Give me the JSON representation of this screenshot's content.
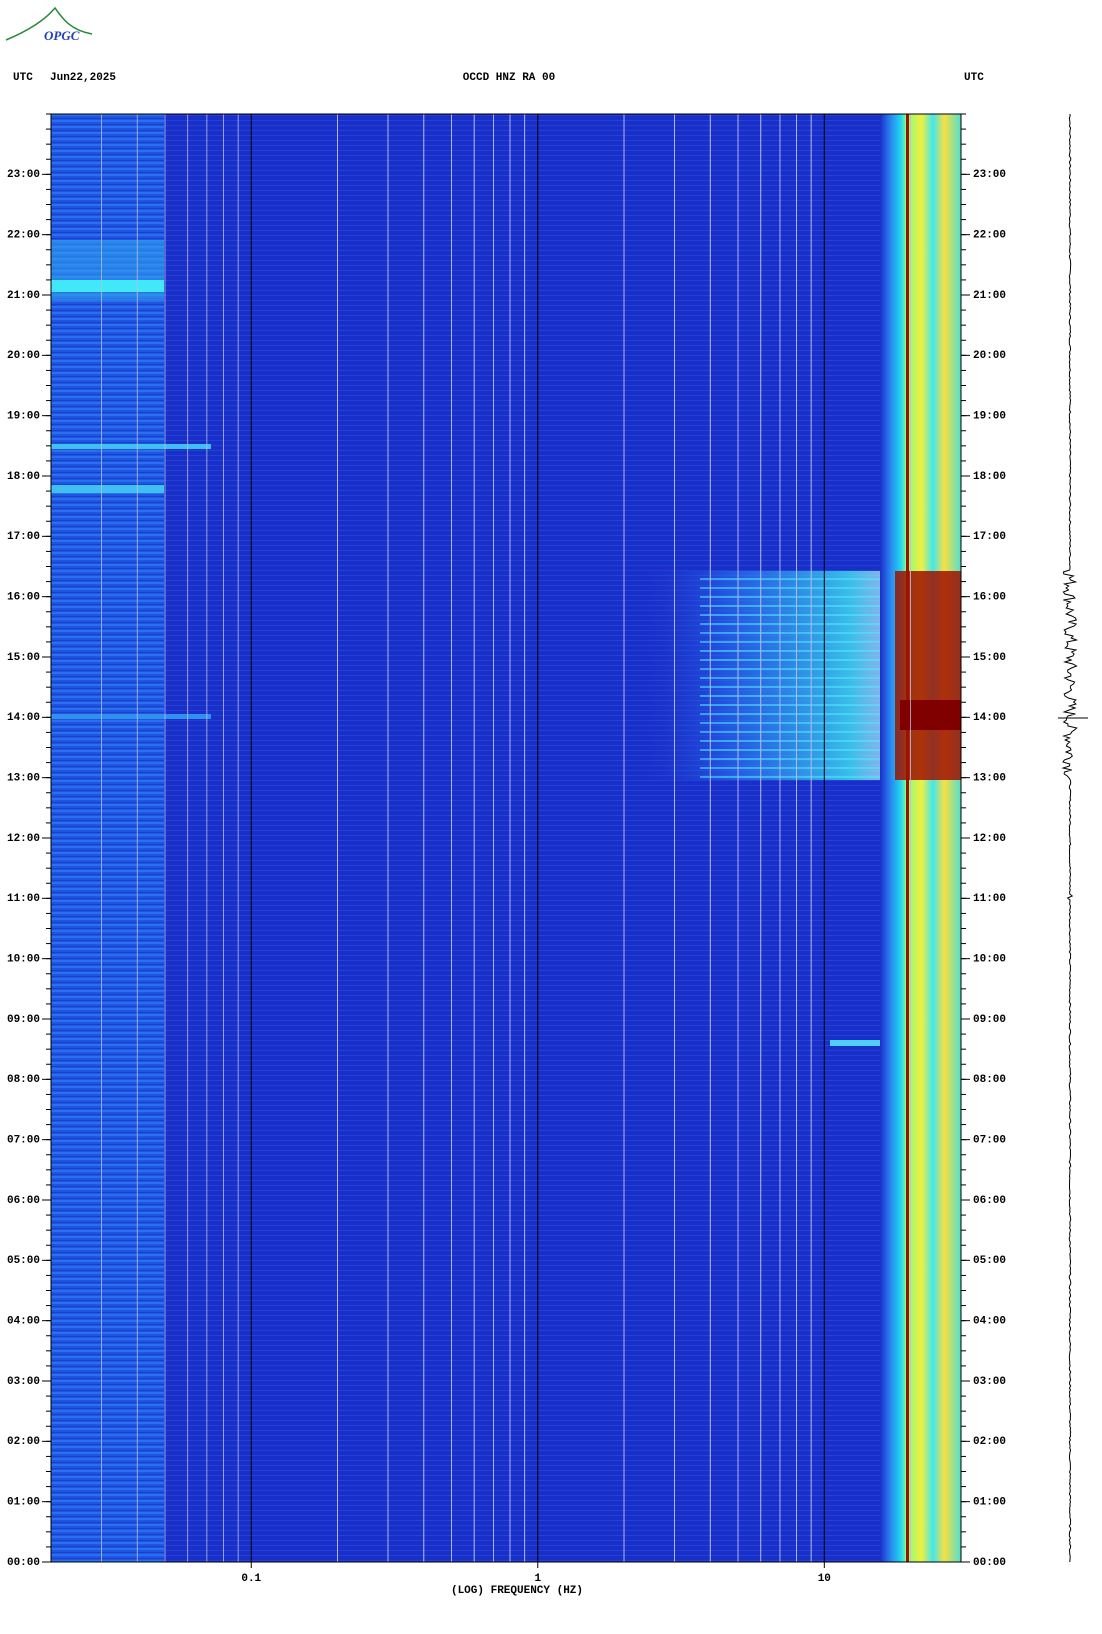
{
  "chart_data": {
    "type": "spectrogram",
    "logo": "OPGC",
    "timezone": "UTC",
    "date": "Jun22,2025",
    "title": "OCCD HNZ RA 00",
    "xlabel": "(LOG) FREQUENCY (HZ)",
    "xscale": "log",
    "xlim": [
      0.02,
      30
    ],
    "xticks": [
      0.1,
      1,
      10
    ],
    "ylim": [
      0,
      24
    ],
    "yticks": [
      {
        "value": 0,
        "label": "00:00"
      },
      {
        "value": 1,
        "label": "01:00"
      },
      {
        "value": 2,
        "label": "02:00"
      },
      {
        "value": 3,
        "label": "03:00"
      },
      {
        "value": 4,
        "label": "04:00"
      },
      {
        "value": 5,
        "label": "05:00"
      },
      {
        "value": 6,
        "label": "06:00"
      },
      {
        "value": 7,
        "label": "07:00"
      },
      {
        "value": 8,
        "label": "08:00"
      },
      {
        "value": 9,
        "label": "09:00"
      },
      {
        "value": 10,
        "label": "10:00"
      },
      {
        "value": 11,
        "label": "11:00"
      },
      {
        "value": 12,
        "label": "12:00"
      },
      {
        "value": 13,
        "label": "13:00"
      },
      {
        "value": 14,
        "label": "14:00"
      },
      {
        "value": 15,
        "label": "15:00"
      },
      {
        "value": 16,
        "label": "16:00"
      },
      {
        "value": 17,
        "label": "17:00"
      },
      {
        "value": 18,
        "label": "18:00"
      },
      {
        "value": 19,
        "label": "19:00"
      },
      {
        "value": 20,
        "label": "20:00"
      },
      {
        "value": 21,
        "label": "21:00"
      },
      {
        "value": 22,
        "label": "22:00"
      },
      {
        "value": 23,
        "label": "23:00"
      }
    ],
    "grid": true
  }
}
